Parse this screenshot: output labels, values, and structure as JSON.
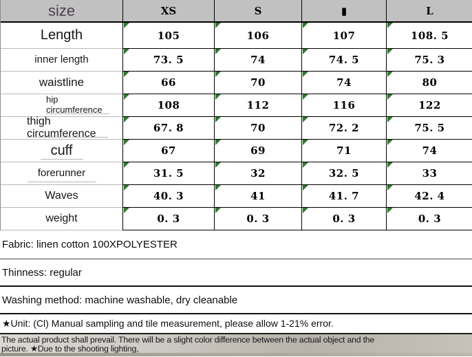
{
  "colors": {
    "header_bg": "#c1c1c1",
    "corner_label_text": "#4a4050",
    "cell_flag_green": "#2a7a2a",
    "table_border": "#000000",
    "label_row_divider": "#b9b9b9",
    "footnote_band_bg": "#c2beb6"
  },
  "size_chart": {
    "header": {
      "corner_label": "size",
      "size_labels": [
        "XS",
        "S",
        "▮",
        "L"
      ]
    },
    "rows": [
      {
        "label": "Length",
        "values": [
          "105",
          "106",
          "107",
          "108. 5"
        ]
      },
      {
        "label": "inner length",
        "values": [
          "73. 5",
          "74",
          "74. 5",
          "75. 3"
        ]
      },
      {
        "label": "waistline",
        "values": [
          "66",
          "70",
          "74",
          "80"
        ]
      },
      {
        "label": "hip\ncircumference",
        "values": [
          "108",
          "112",
          "116",
          "122"
        ]
      },
      {
        "label": "thigh\ncircumference",
        "values": [
          "67. 8",
          "70",
          "72. 2",
          "75. 5"
        ]
      },
      {
        "label": "cuff",
        "values": [
          "67",
          "69",
          "71",
          "74"
        ]
      },
      {
        "label": "forerunner",
        "values": [
          "31. 5",
          "32",
          "32. 5",
          "33"
        ]
      },
      {
        "label": "Waves",
        "values": [
          "40. 3",
          "41",
          "41. 7",
          "42. 4"
        ]
      },
      {
        "label": "weight",
        "values": [
          "0. 3",
          "0. 3",
          "0. 3",
          "0. 3"
        ]
      }
    ],
    "cell_flag_icon": "green-corner-triangle"
  },
  "product_info": [
    {
      "text": "Fabric: linen cotton 100XPOLYESTER"
    },
    {
      "text": "Thinness: regular"
    },
    {
      "text": "Washing method: machine washable, dry cleanable"
    },
    {
      "text": "★Unit: (Cl) Manual sampling and tile measurement, please allow 1-21% error."
    }
  ],
  "footnote": {
    "line1": "The actual product shall prevail. There will be a slight color difference between the actual object and the",
    "line2": "picture. ★Due to the shooting lighting,"
  }
}
